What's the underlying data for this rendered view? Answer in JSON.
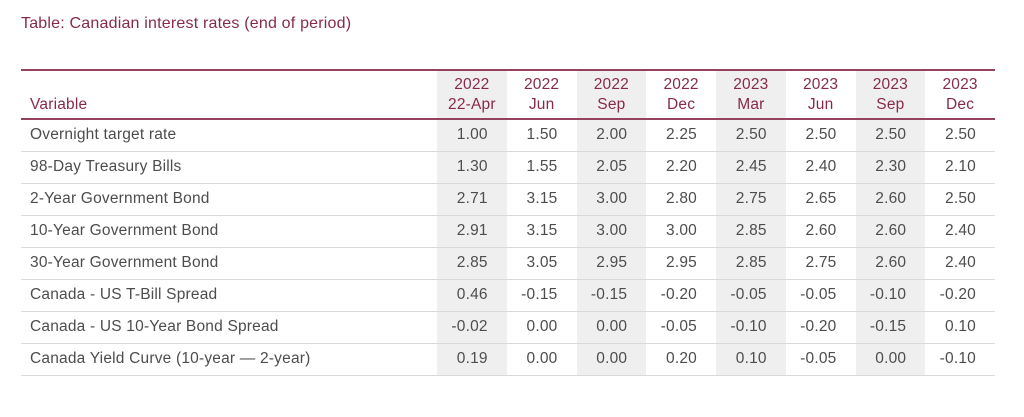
{
  "title": "Table: Canadian interest rates (end of period)",
  "colors": {
    "maroon_text": "#872a49",
    "maroon_border": "#94425f",
    "body_text": "#4d4d4d",
    "column_shade": "#f0eff0",
    "row_separator": "#d9d9d9",
    "background": "#ffffff"
  },
  "chart_data": {
    "type": "table",
    "title": "Table: Canadian interest rates (end of period)",
    "row_header_label": "Variable",
    "columns": [
      {
        "year": "2022",
        "period": "22-Apr"
      },
      {
        "year": "2022",
        "period": "Jun"
      },
      {
        "year": "2022",
        "period": "Sep"
      },
      {
        "year": "2022",
        "period": "Dec"
      },
      {
        "year": "2023",
        "period": "Mar"
      },
      {
        "year": "2023",
        "period": "Jun"
      },
      {
        "year": "2023",
        "period": "Sep"
      },
      {
        "year": "2023",
        "period": "Dec"
      }
    ],
    "shaded_columns": [
      0,
      2,
      4,
      6
    ],
    "rows": [
      {
        "variable": "Overnight target rate",
        "values": [
          "1.00",
          "1.50",
          "2.00",
          "2.25",
          "2.50",
          "2.50",
          "2.50",
          "2.50"
        ]
      },
      {
        "variable": "98-Day Treasury Bills",
        "values": [
          "1.30",
          "1.55",
          "2.05",
          "2.20",
          "2.45",
          "2.40",
          "2.30",
          "2.10"
        ]
      },
      {
        "variable": "2-Year Government Bond",
        "values": [
          "2.71",
          "3.15",
          "3.00",
          "2.80",
          "2.75",
          "2.65",
          "2.60",
          "2.50"
        ]
      },
      {
        "variable": "10-Year Government Bond",
        "values": [
          "2.91",
          "3.15",
          "3.00",
          "3.00",
          "2.85",
          "2.60",
          "2.60",
          "2.40"
        ]
      },
      {
        "variable": "30-Year Government Bond",
        "values": [
          "2.85",
          "3.05",
          "2.95",
          "2.95",
          "2.85",
          "2.75",
          "2.60",
          "2.40"
        ]
      },
      {
        "variable": "Canada - US T-Bill Spread",
        "values": [
          "0.46",
          "-0.15",
          "-0.15",
          "-0.20",
          "-0.05",
          "-0.05",
          "-0.10",
          "-0.20"
        ]
      },
      {
        "variable": "Canada - US 10-Year Bond Spread",
        "values": [
          "-0.02",
          "0.00",
          "0.00",
          "-0.05",
          "-0.10",
          "-0.20",
          "-0.15",
          "0.10"
        ]
      },
      {
        "variable": "Canada Yield Curve (10-year — 2-year)",
        "values": [
          "0.19",
          "0.00",
          "0.00",
          "0.20",
          "0.10",
          "-0.05",
          "0.00",
          "-0.10"
        ]
      }
    ]
  }
}
